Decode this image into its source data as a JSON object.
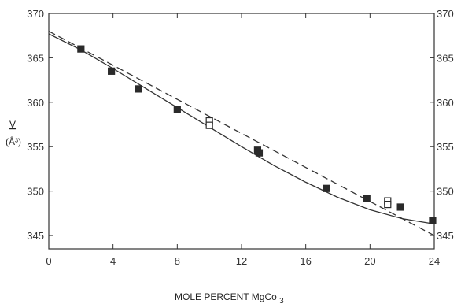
{
  "chart_data": {
    "type": "scatter",
    "title": "",
    "xlabel": "MOLE PERCENT MgCo",
    "xlabel_subscript": "3",
    "ylabel": "V",
    "ylabel_unit": "(Å³)",
    "xlim": [
      0,
      24
    ],
    "ylim": [
      343.5,
      370
    ],
    "x_ticks": [
      0,
      4,
      8,
      12,
      16,
      20,
      24
    ],
    "y_ticks": [
      345,
      350,
      355,
      360,
      365,
      370
    ],
    "grid": false,
    "colors": {
      "axis": "#333333",
      "filled": "#2a2a2a",
      "open_fill": "#ffffff",
      "line": "#333333"
    },
    "series": [
      {
        "marker": "filled-square",
        "x": [
          2.0,
          3.9,
          5.6,
          8.0,
          13.0,
          13.1,
          17.3,
          19.8,
          21.9,
          23.9
        ],
        "y": [
          366.0,
          363.5,
          361.5,
          359.2,
          354.6,
          354.3,
          350.3,
          349.2,
          348.2,
          346.7
        ]
      },
      {
        "marker": "open-square",
        "x": [
          10.0,
          10.0,
          21.1,
          21.1
        ],
        "y": [
          357.9,
          357.4,
          348.9,
          348.5
        ]
      },
      {
        "line_style": "solid",
        "x": [
          0,
          2,
          4,
          6,
          8,
          10,
          12,
          14,
          16,
          18,
          20,
          22,
          24
        ],
        "y": [
          367.7,
          365.9,
          363.8,
          361.6,
          359.4,
          357.2,
          355.0,
          352.9,
          351.0,
          349.3,
          347.9,
          346.9,
          346.3
        ]
      },
      {
        "line_style": "dashed",
        "x": [
          0,
          24
        ],
        "y": [
          368.0,
          345.0
        ]
      }
    ]
  }
}
